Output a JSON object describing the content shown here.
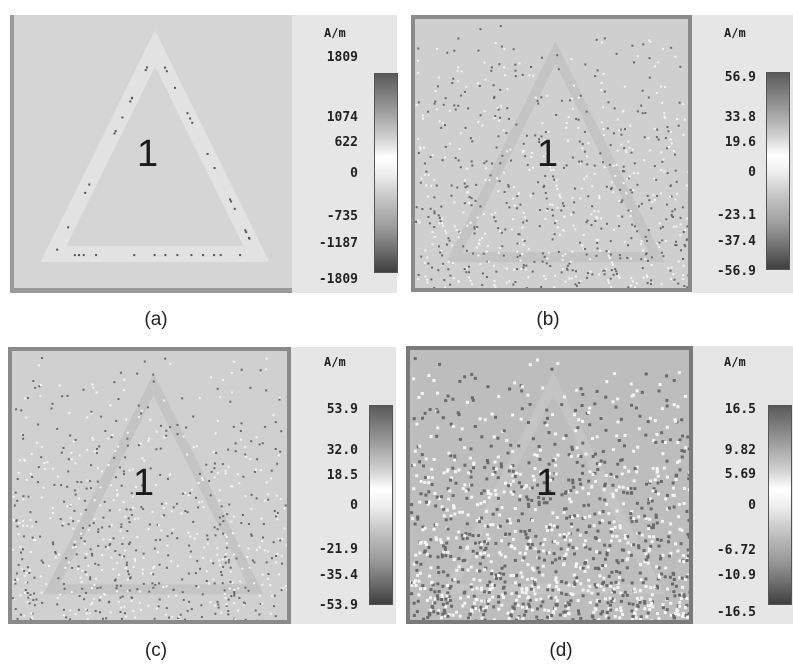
{
  "panels": [
    {
      "caption": "(a)",
      "unit": "A/m",
      "region_label": "1",
      "colorbar_ticks": [
        "1809",
        "1074",
        "622",
        "0",
        "-735",
        "-1187",
        "-1809"
      ],
      "colorbar_max": 1809,
      "colorbar_min": -1809,
      "noise_level": 0.0
    },
    {
      "caption": "(b)",
      "unit": "A/m",
      "region_label": "1",
      "colorbar_ticks": [
        "56.9",
        "33.8",
        "19.6",
        "0",
        "-23.1",
        "-37.4",
        "-56.9"
      ],
      "colorbar_max": 56.9,
      "colorbar_min": -56.9,
      "noise_level": 0.6
    },
    {
      "caption": "(c)",
      "unit": "A/m",
      "region_label": "1",
      "colorbar_ticks": [
        "53.9",
        "32.0",
        "18.5",
        "0",
        "-21.9",
        "-35.4",
        "-53.9"
      ],
      "colorbar_max": 53.9,
      "colorbar_min": -53.9,
      "noise_level": 0.6
    },
    {
      "caption": "(d)",
      "unit": "A/m",
      "region_label": "1",
      "colorbar_ticks": [
        "16.5",
        "9.82",
        "5.69",
        "0",
        "-6.72",
        "-10.9",
        "-16.5"
      ],
      "colorbar_max": 16.5,
      "colorbar_min": -16.5,
      "noise_level": 1.0
    }
  ]
}
